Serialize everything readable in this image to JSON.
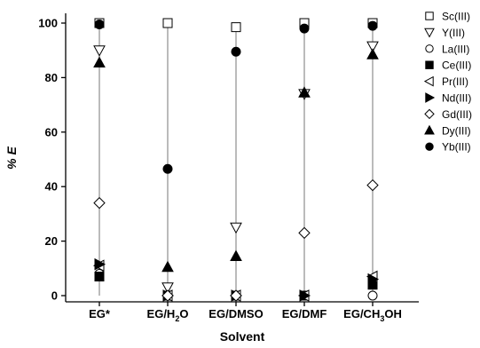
{
  "chart_data": {
    "type": "scatter",
    "ylabel": "% E",
    "xlabel": "Solvent",
    "ylim": [
      0,
      100
    ],
    "yticks": [
      0,
      20,
      40,
      60,
      80,
      100
    ],
    "categories": [
      {
        "main": "EG*",
        "sub": "",
        "tail": ""
      },
      {
        "main": "EG/H",
        "sub": "2",
        "tail": "O"
      },
      {
        "main": "EG/DMSO",
        "sub": "",
        "tail": ""
      },
      {
        "main": "EG/DMF",
        "sub": "",
        "tail": ""
      },
      {
        "main": "EG/CH",
        "sub": "3",
        "tail": "OH"
      }
    ],
    "legend_position": "right",
    "series": [
      {
        "name": "Sc(III)",
        "marker": "square-open",
        "values": [
          100,
          100,
          98.5,
          100,
          100
        ]
      },
      {
        "name": "Y(III)",
        "marker": "triangle-down-open",
        "values": [
          90,
          3,
          25,
          74,
          91.5
        ]
      },
      {
        "name": "La(III)",
        "marker": "circle-open",
        "values": [
          8,
          0,
          0,
          0,
          0
        ]
      },
      {
        "name": "Ce(III)",
        "marker": "square-filled",
        "values": [
          7,
          0,
          0,
          0,
          4
        ]
      },
      {
        "name": "Pr(III)",
        "marker": "triangle-left-open",
        "values": [
          11,
          0,
          0,
          0,
          7
        ]
      },
      {
        "name": "Nd(III)",
        "marker": "triangle-right-filled",
        "values": [
          11.5,
          0,
          0,
          0,
          6
        ]
      },
      {
        "name": "Gd(III)",
        "marker": "diamond-open",
        "values": [
          34,
          0,
          0,
          23,
          40.5
        ]
      },
      {
        "name": "Dy(III)",
        "marker": "triangle-up-filled",
        "values": [
          85.5,
          10.5,
          14.5,
          74.5,
          88.5
        ]
      },
      {
        "name": "Yb(III)",
        "marker": "circle-filled",
        "values": [
          99.5,
          46.5,
          89.5,
          98,
          99
        ]
      }
    ]
  }
}
